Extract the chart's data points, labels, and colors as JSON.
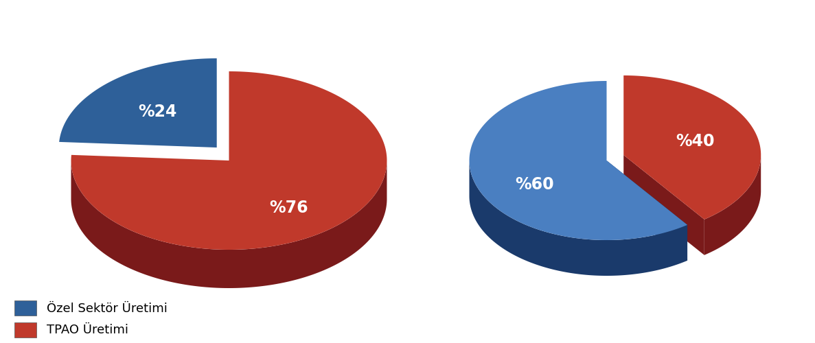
{
  "left_pie": {
    "values": [
      76,
      24
    ],
    "colors": [
      "#c0392b",
      "#2e6099"
    ],
    "dark_colors": [
      "#7a1a1a",
      "#1a3a6b"
    ],
    "labels": [
      "%76",
      "%24"
    ],
    "explode": [
      0.0,
      0.13
    ],
    "start_angle": 90
  },
  "right_pie": {
    "values": [
      40,
      60
    ],
    "colors": [
      "#c0392b",
      "#4a7fc1"
    ],
    "dark_colors": [
      "#7a1a1a",
      "#1a3a6b"
    ],
    "labels": [
      "%40",
      "%60"
    ],
    "explode": [
      0.13,
      0.0
    ],
    "start_angle": 90
  },
  "legend_labels": [
    "Özel Sektör Üretimi",
    "TPAO Üretimi"
  ],
  "legend_colors": [
    "#2e6099",
    "#c0392b"
  ],
  "label_fontsize": 17,
  "label_color": "white",
  "label_fontweight": "bold",
  "bg_color": "#ffffff"
}
